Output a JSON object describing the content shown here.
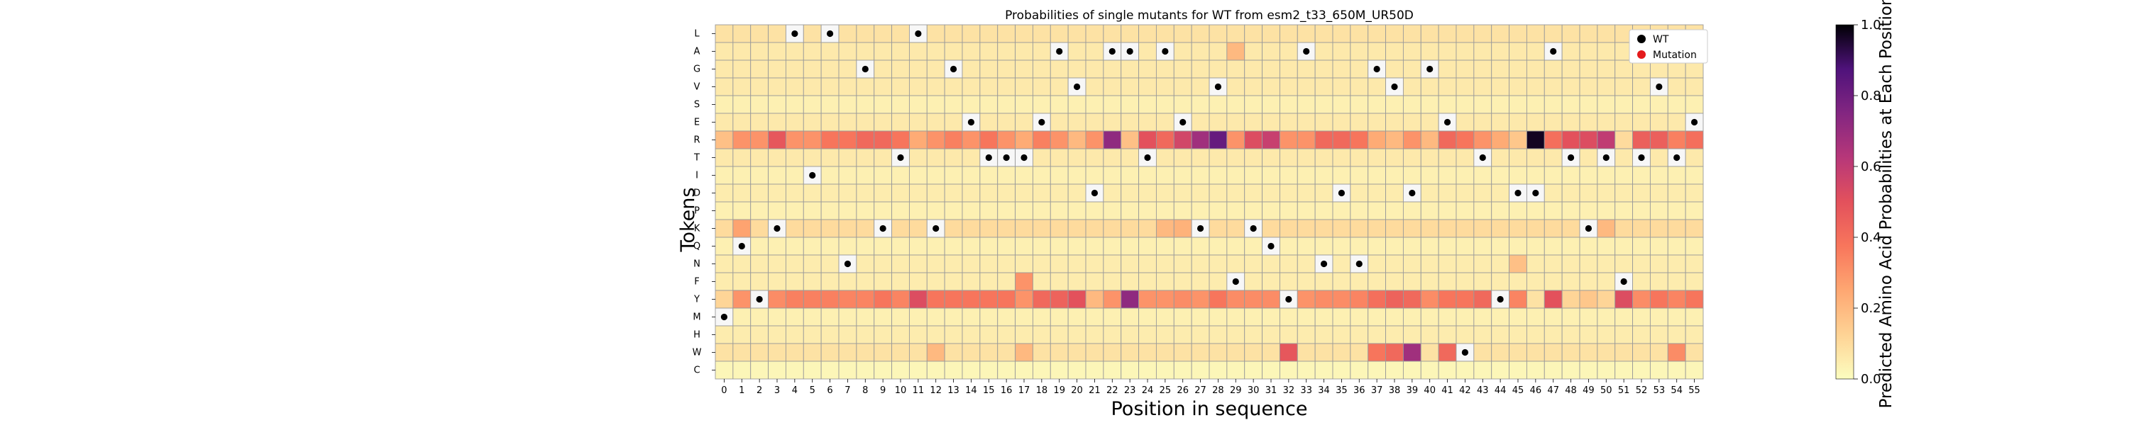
{
  "chart_data": {
    "type": "heatmap",
    "title": "Probabilities of single mutants for WT from esm2_t33_650M_UR50D",
    "xlabel": "Position in sequence",
    "ylabel": "Tokens",
    "x": [
      0,
      1,
      2,
      3,
      4,
      5,
      6,
      7,
      8,
      9,
      10,
      11,
      12,
      13,
      14,
      15,
      16,
      17,
      18,
      19,
      20,
      21,
      22,
      23,
      24,
      25,
      26,
      27,
      28,
      29,
      30,
      31,
      32,
      33,
      34,
      35,
      36,
      37,
      38,
      39,
      40,
      41,
      42,
      43,
      44,
      45,
      46,
      47,
      48,
      49,
      50,
      51,
      52,
      53,
      54,
      55
    ],
    "tokens": [
      "L",
      "A",
      "G",
      "V",
      "S",
      "E",
      "R",
      "T",
      "I",
      "D",
      "P",
      "K",
      "Q",
      "N",
      "F",
      "Y",
      "M",
      "H",
      "W",
      "C"
    ],
    "wt_sequence": [
      "M",
      "Q",
      "Y",
      "K",
      "L",
      "I",
      "L",
      "N",
      "G",
      "K",
      "T",
      "L",
      "K",
      "G",
      "E",
      "T",
      "T",
      "T",
      "E",
      "A",
      "V",
      "D",
      "A",
      "A",
      "T",
      "A",
      "E",
      "K",
      "V",
      "F",
      "K",
      "Q",
      "Y",
      "A",
      "N",
      "D",
      "N",
      "G",
      "V",
      "D",
      "G",
      "E",
      "W",
      "T",
      "Y",
      "D",
      "D",
      "A",
      "T",
      "K",
      "T",
      "F",
      "T",
      "V",
      "T",
      "E"
    ],
    "legend": [
      {
        "label": "WT",
        "color": "#000000"
      },
      {
        "label": "Mutation",
        "color": "#e41a1c"
      }
    ],
    "colorbar": {
      "label": "Predicted Amino Acid Probabilities at Each Position",
      "range": [
        0.0,
        1.0
      ],
      "ticks": [
        "0.0",
        "0.2",
        "0.4",
        "0.6",
        "0.8",
        "1.0"
      ],
      "colormap": "magma_r"
    },
    "row_base": {
      "L": 0.08,
      "A": 0.06,
      "G": 0.06,
      "V": 0.06,
      "S": 0.04,
      "E": 0.06,
      "R": 0.35,
      "T": 0.06,
      "I": 0.04,
      "D": 0.05,
      "P": 0.04,
      "K": 0.1,
      "Q": 0.04,
      "N": 0.05,
      "F": 0.05,
      "Y": 0.33,
      "M": 0.04,
      "H": 0.05,
      "W": 0.08,
      "C": 0.02
    },
    "values": {
      "R": {
        "0": 0.18,
        "1": 0.3,
        "2": 0.3,
        "3": 0.48,
        "4": 0.3,
        "5": 0.3,
        "6": 0.38,
        "7": 0.38,
        "8": 0.42,
        "9": 0.42,
        "10": 0.38,
        "11": 0.24,
        "12": 0.3,
        "13": 0.35,
        "14": 0.3,
        "15": 0.38,
        "16": 0.3,
        "17": 0.24,
        "18": 0.35,
        "19": 0.3,
        "20": 0.2,
        "21": 0.3,
        "22": 0.72,
        "23": 0.18,
        "24": 0.5,
        "25": 0.42,
        "26": 0.55,
        "27": 0.68,
        "28": 0.82,
        "29": 0.3,
        "30": 0.52,
        "31": 0.58,
        "32": 0.3,
        "33": 0.3,
        "34": 0.42,
        "35": 0.42,
        "36": 0.38,
        "37": 0.24,
        "38": 0.2,
        "39": 0.3,
        "40": 0.2,
        "41": 0.42,
        "42": 0.38,
        "43": 0.3,
        "44": 0.24,
        "45": 0.16,
        "46": 0.97,
        "47": 0.4,
        "48": 0.5,
        "49": 0.52,
        "50": 0.6,
        "51": 0.1,
        "52": 0.45,
        "53": 0.45,
        "54": 0.35,
        "55": 0.4
      },
      "Y": {
        "0": 0.12,
        "1": 0.3,
        "2": 0.62,
        "3": 0.32,
        "4": 0.35,
        "5": 0.35,
        "6": 0.35,
        "7": 0.34,
        "8": 0.34,
        "9": 0.38,
        "10": 0.34,
        "11": 0.52,
        "12": 0.38,
        "13": 0.38,
        "14": 0.38,
        "15": 0.38,
        "16": 0.38,
        "17": 0.3,
        "18": 0.42,
        "19": 0.44,
        "20": 0.5,
        "21": 0.2,
        "22": 0.3,
        "23": 0.72,
        "24": 0.3,
        "25": 0.3,
        "26": 0.32,
        "27": 0.3,
        "28": 0.38,
        "29": 0.32,
        "30": 0.32,
        "31": 0.32,
        "32": 0.3,
        "33": 0.3,
        "34": 0.32,
        "35": 0.32,
        "36": 0.34,
        "37": 0.4,
        "38": 0.44,
        "39": 0.42,
        "40": 0.32,
        "41": 0.38,
        "42": 0.38,
        "43": 0.42,
        "44": 0.55,
        "45": 0.34,
        "46": 0.08,
        "47": 0.5,
        "48": 0.12,
        "49": 0.16,
        "50": 0.12,
        "51": 0.52,
        "52": 0.32,
        "53": 0.38,
        "54": 0.34,
        "55": 0.38
      },
      "M": {
        "0": 0.98
      },
      "W": {
        "12": 0.2,
        "17": 0.2,
        "32": 0.48,
        "37": 0.38,
        "38": 0.42,
        "39": 0.68,
        "41": 0.42,
        "42": 0.5,
        "54": 0.32
      },
      "K": {
        "1": 0.26,
        "3": 0.32,
        "25": 0.2,
        "26": 0.22,
        "49": 0.3,
        "50": 0.2
      },
      "L": {
        "4": 0.22
      },
      "A": {
        "25": 0.26,
        "29": 0.2
      },
      "G": {
        "8": 0.3,
        "40": 0.3
      },
      "D": {
        "45": 0.3
      },
      "F": {
        "17": 0.3,
        "51": 0.3
      },
      "N": {
        "45": 0.18
      },
      "T": {
        "48": 0.2,
        "50": 0.2,
        "52": 0.2
      }
    }
  }
}
